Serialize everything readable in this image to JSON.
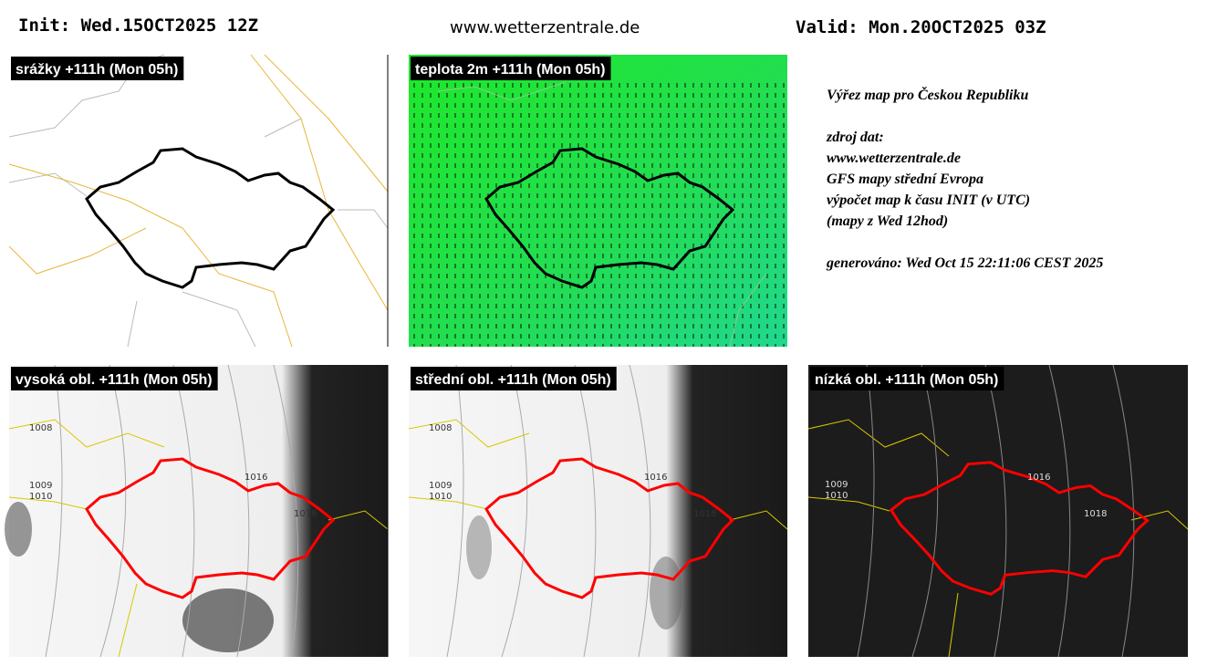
{
  "header": {
    "init": "Init: Wed.15OCT2025 12Z",
    "site": "www.wetterzentrale.de",
    "valid": "Valid: Mon.20OCT2025 03Z"
  },
  "panels": [
    {
      "label": "srážky +111h (Mon 05h)"
    },
    {
      "label": "teplota 2m +111h (Mon 05h)"
    },
    {
      "label": "vysoká obl. +111h (Mon 05h)",
      "isobar_labels": [
        "1008",
        "1009",
        "1010",
        "1016",
        "1018"
      ]
    },
    {
      "label": "střední obl. +111h (Mon 05h)",
      "isobar_labels": [
        "1008",
        "1009",
        "1010",
        "1016",
        "1018"
      ]
    },
    {
      "label": "nízká obl. +111h (Mon 05h)",
      "isobar_labels": [
        "1009",
        "1010",
        "1016",
        "1018"
      ]
    }
  ],
  "info": [
    "Výřez map pro Českou Republiku",
    "zdroj dat:",
    "www.wetterzentrale.de",
    "GFS mapy střední Evropa",
    "výpočet map k času INIT (v UTC)",
    "(mapy z Wed 12hod)",
    "generováno: Wed Oct 15 22:11:06 CEST 2025"
  ]
}
